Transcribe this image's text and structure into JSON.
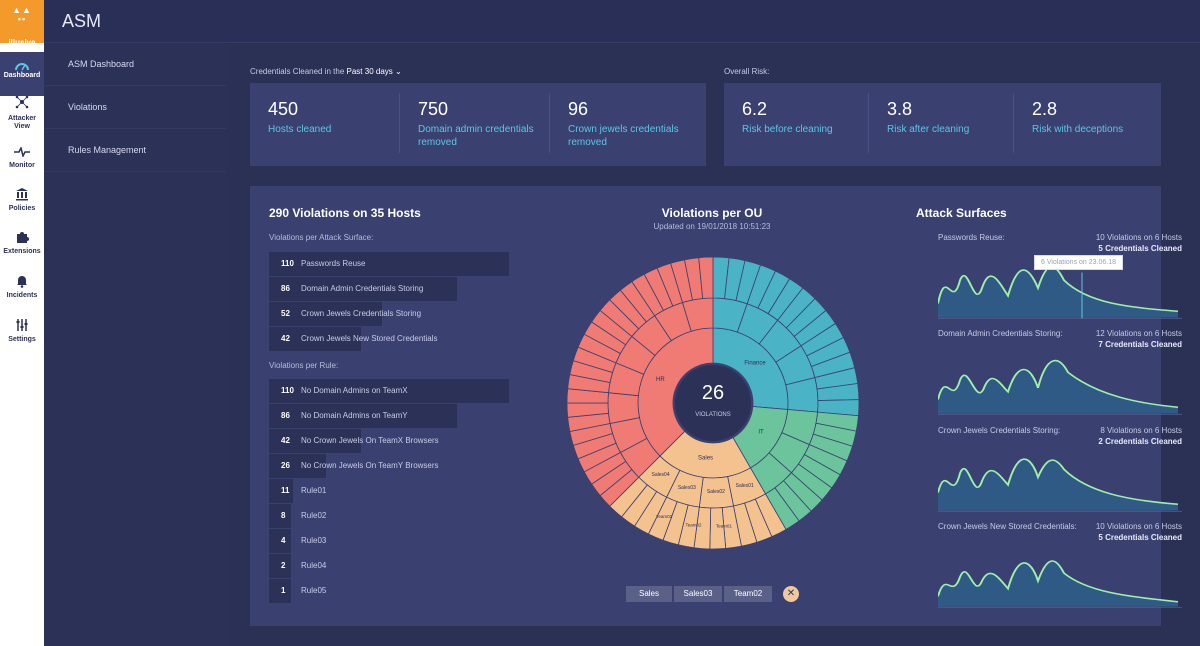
{
  "app": {
    "brand": "illusive",
    "title": "ASM"
  },
  "rail": [
    {
      "label": "Dashboard",
      "icon": "gauge-icon"
    },
    {
      "label": "Attacker View",
      "icon": "network-icon"
    },
    {
      "label": "Monitor",
      "icon": "pulse-icon"
    },
    {
      "label": "Policies",
      "icon": "bank-icon"
    },
    {
      "label": "Extensions",
      "icon": "puzzle-icon"
    },
    {
      "label": "Incidents",
      "icon": "bell-icon"
    },
    {
      "label": "Settings",
      "icon": "sliders-icon"
    }
  ],
  "subnav": [
    "ASM Dashboard",
    "Violations",
    "Rules Management"
  ],
  "credentials": {
    "label": "Credentials Cleaned in the",
    "period": "Past 30 days",
    "stats": [
      {
        "value": "450",
        "caption": "Hosts cleaned"
      },
      {
        "value": "750",
        "caption": "Domain admin credentials removed"
      },
      {
        "value": "96",
        "caption": "Crown jewels credentials removed"
      }
    ]
  },
  "risk": {
    "label": "Overall Risk:",
    "stats": [
      {
        "value": "6.2",
        "caption": "Risk before cleaning"
      },
      {
        "value": "3.8",
        "caption": "Risk after cleaning"
      },
      {
        "value": "2.8",
        "caption": "Risk with deceptions"
      }
    ]
  },
  "violations": {
    "title": "290 Violations on 35 Hosts",
    "surface_label": "Violations per Attack Surface:",
    "surface": [
      {
        "n": "110",
        "label": "Passwords Reuse",
        "value": 110
      },
      {
        "n": "86",
        "label": "Domain Admin Credentials Storing",
        "value": 86
      },
      {
        "n": "52",
        "label": "Crown Jewels Credentials Storing",
        "value": 52
      },
      {
        "n": "42",
        "label": "Crown Jewels New Stored Credentials",
        "value": 42
      }
    ],
    "rule_label": "Violations per Rule:",
    "rules": [
      {
        "n": "110",
        "label": "No Domain Admins on TeamX",
        "value": 110
      },
      {
        "n": "86",
        "label": "No Domain Admins on TeamY",
        "value": 86
      },
      {
        "n": "42",
        "label": "No Crown Jewels On TeamX Browsers",
        "value": 42
      },
      {
        "n": "26",
        "label": "No Crown Jewels On TeamY Browsers",
        "value": 26
      },
      {
        "n": "11",
        "label": "Rule01",
        "value": 11
      },
      {
        "n": "8",
        "label": "Rule02",
        "value": 8
      },
      {
        "n": "4",
        "label": "Rule03",
        "value": 4
      },
      {
        "n": "2",
        "label": "Rule04",
        "value": 2
      },
      {
        "n": "1",
        "label": "Rule05",
        "value": 1
      }
    ]
  },
  "ou": {
    "title": "Violations per OU",
    "updated": "Updated on 19/01/2018 10:51:23",
    "center_value": "26",
    "center_label": "VIOLATIONS",
    "segments": [
      {
        "label": "Finance",
        "start": 0,
        "end": 95,
        "color": "#4ab3c6"
      },
      {
        "label": "IT",
        "start": 95,
        "end": 150,
        "color": "#6cc49c"
      },
      {
        "label": "Sales",
        "start": 150,
        "end": 225,
        "color": "#f4c28f"
      },
      {
        "label": "HR",
        "start": 225,
        "end": 360,
        "color": "#f07a74"
      }
    ],
    "sales_sub": [
      "Sales01",
      "Sales02",
      "Sales03",
      "Sales04"
    ],
    "team_sub": [
      "Team01",
      "Team02",
      "Team03"
    ],
    "breadcrumbs": [
      "Sales",
      "Sales03",
      "Team02"
    ],
    "close": "✕"
  },
  "attack": {
    "title": "Attack Surfaces",
    "tooltip": "6 Violations on 23.06.18",
    "rows": [
      {
        "name": "Passwords Reuse:",
        "violations": "10 Violations on 6 Hosts",
        "creds": "5 Credentials Cleaned"
      },
      {
        "name": "Domain Admin Credentials Storing:",
        "violations": "12 Violations on 6 Hosts",
        "creds": "7 Credentials Cleaned"
      },
      {
        "name": "Crown Jewels Credentials Storing:",
        "violations": "8 Violations on 6 Hosts",
        "creds": "2 Credentials Cleaned"
      },
      {
        "name": "Crown Jewels New Stored Credentials:",
        "violations": "10 Violations on 6 Hosts",
        "creds": "5 Credentials Cleaned"
      }
    ]
  },
  "colors": {
    "accent": "#5bc6e6",
    "spark": "#9ef0a8",
    "brand": "#f39a2a"
  }
}
